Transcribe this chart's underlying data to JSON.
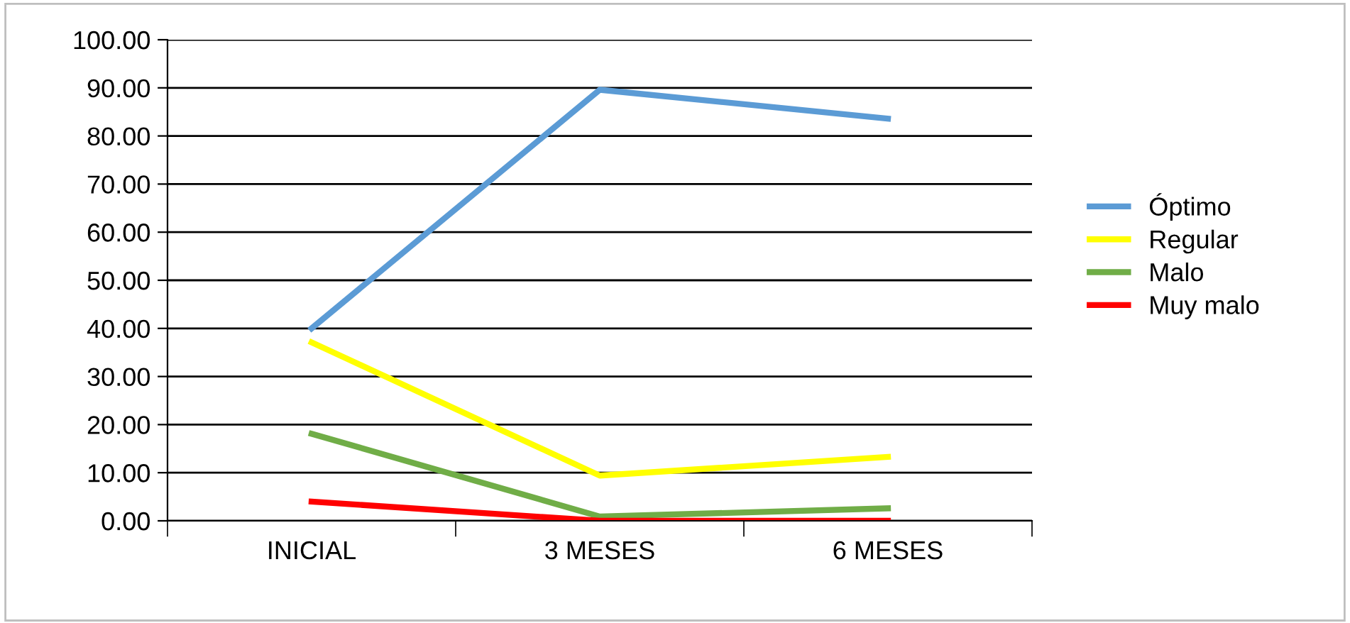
{
  "chart_data": {
    "type": "line",
    "categories": [
      "INICIAL",
      "3 MESES",
      "6 MESES"
    ],
    "series": [
      {
        "name": "Óptimo",
        "color": "#5b9bd5",
        "values": [
          40.0,
          89.6,
          83.6
        ]
      },
      {
        "name": "Regular",
        "color": "#ffff00",
        "values": [
          37.1,
          9.4,
          13.3
        ]
      },
      {
        "name": "Malo",
        "color": "#70ad47",
        "values": [
          18.1,
          0.9,
          2.6
        ]
      },
      {
        "name": "Muy malo",
        "color": "#ff0000",
        "values": [
          4.0,
          0.0,
          0.0
        ]
      }
    ],
    "ylim": [
      0,
      100
    ],
    "yticks": [
      {
        "value": 0,
        "label": "0.00"
      },
      {
        "value": 10,
        "label": "10.00"
      },
      {
        "value": 20,
        "label": "20.00"
      },
      {
        "value": 30,
        "label": "30.00"
      },
      {
        "value": 40,
        "label": "40.00"
      },
      {
        "value": 50,
        "label": "50.00"
      },
      {
        "value": 60,
        "label": "60.00"
      },
      {
        "value": 70,
        "label": "70.00"
      },
      {
        "value": 80,
        "label": "80.00"
      },
      {
        "value": 90,
        "label": "90.00"
      },
      {
        "value": 100,
        "label": "100.00"
      }
    ],
    "grid": "y",
    "legend": "right",
    "marker": "none",
    "line_style": "solid"
  }
}
